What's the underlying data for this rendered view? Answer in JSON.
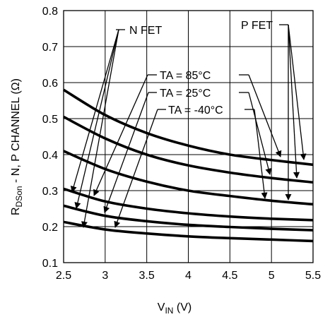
{
  "chart_data": {
    "type": "line",
    "xlabel": {
      "main": "V",
      "sub": "IN",
      "unit": " (V)"
    },
    "ylabel": {
      "main": "R",
      "sub": "DSon",
      "rest": " - N, P CHANNEL (Ω)"
    },
    "xlim": [
      2.5,
      5.5
    ],
    "ylim": [
      0.1,
      0.8
    ],
    "x_ticks": [
      "2.5",
      "3",
      "3.5",
      "4",
      "4.5",
      "5",
      "5.5"
    ],
    "y_ticks": [
      "0.1",
      "0.2",
      "0.3",
      "0.4",
      "0.5",
      "0.6",
      "0.7",
      "0.8"
    ],
    "grid": true,
    "series": [
      {
        "x": [
          2.5,
          3,
          3.5,
          4,
          4.5,
          5,
          5.5
        ],
        "values": [
          0.58,
          0.51,
          0.46,
          0.425,
          0.4,
          0.385,
          0.372
        ]
      },
      {
        "x": [
          2.5,
          3,
          3.5,
          4,
          4.5,
          5,
          5.5
        ],
        "values": [
          0.505,
          0.445,
          0.4,
          0.37,
          0.35,
          0.335,
          0.323
        ]
      },
      {
        "x": [
          2.5,
          3,
          3.5,
          4,
          4.5,
          5,
          5.5
        ],
        "values": [
          0.41,
          0.36,
          0.325,
          0.3,
          0.285,
          0.272,
          0.262
        ]
      },
      {
        "x": [
          2.5,
          3,
          3.5,
          4,
          4.5,
          5,
          5.5
        ],
        "values": [
          0.305,
          0.27,
          0.25,
          0.237,
          0.228,
          0.222,
          0.218
        ]
      },
      {
        "x": [
          2.5,
          3,
          3.5,
          4,
          4.5,
          5,
          5.5
        ],
        "values": [
          0.258,
          0.23,
          0.215,
          0.205,
          0.199,
          0.194,
          0.19
        ]
      },
      {
        "x": [
          2.5,
          3,
          3.5,
          4,
          4.5,
          5,
          5.5
        ],
        "values": [
          0.213,
          0.192,
          0.181,
          0.173,
          0.168,
          0.164,
          0.16
        ]
      }
    ],
    "annotations": {
      "n_fet": "N FET",
      "p_fet": "P FET",
      "ta_85": "TA = 85°C",
      "ta_25": "TA = 25°C",
      "ta_m40": "TA = -40°C"
    }
  }
}
